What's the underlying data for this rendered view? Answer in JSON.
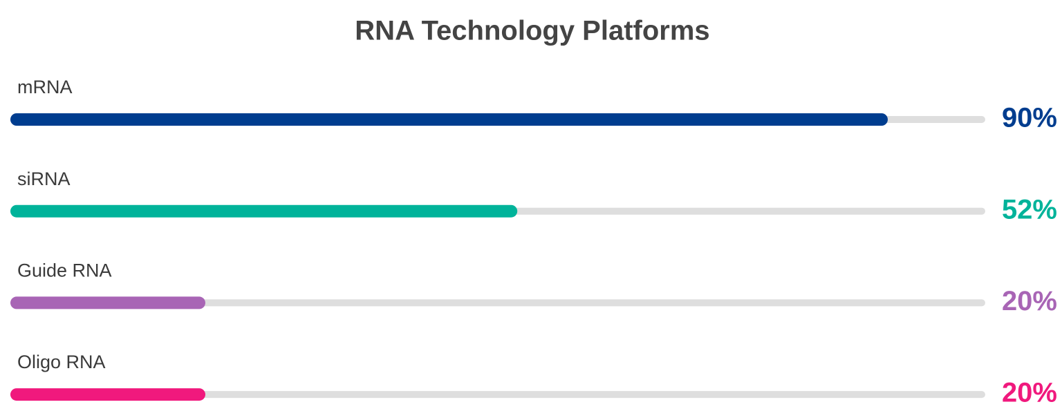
{
  "chart_data": {
    "type": "bar",
    "orientation": "horizontal",
    "title": "RNA Technology Platforms",
    "categories": [
      "mRNA",
      "siRNA",
      "Guide RNA",
      "Oligo RNA"
    ],
    "values": [
      90,
      52,
      20,
      20
    ],
    "value_labels": [
      "90%",
      "52%",
      "20%",
      "20%"
    ],
    "colors": [
      "#003d8f",
      "#00b39a",
      "#a865b5",
      "#f0197d"
    ],
    "xlim": [
      0,
      100
    ]
  }
}
